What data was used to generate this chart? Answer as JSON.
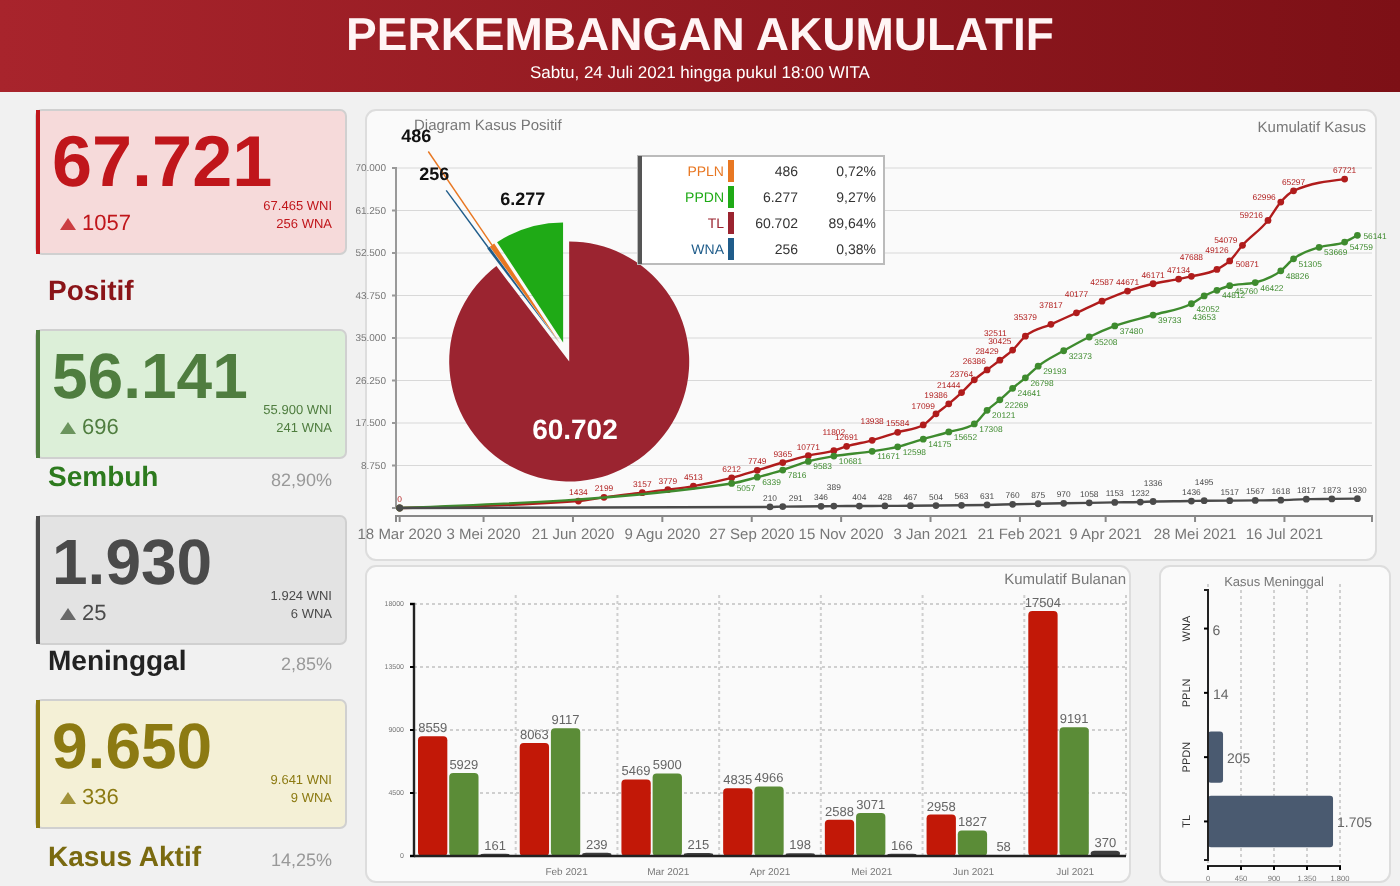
{
  "chart_data": [
    {
      "type": "other",
      "title": "PERKEMBANGAN AKUMULATIF",
      "subtitle": "Sabtu, 24 Juli 2021 hingga pukul 18:00 WITA",
      "annotations": [
        "67.721",
        "1057",
        "67.465 WNI",
        "256 WNA",
        "Positif",
        "56.141",
        "696",
        "55.900 WNI",
        "241 WNA",
        "Sembuh",
        "82,90%",
        "1.930",
        "25",
        "1.924 WNI",
        "6 WNA",
        "Meninggal",
        "2,85%",
        "9.650",
        "336",
        "9.641 WNI",
        "9 WNA",
        "Kasus Aktif",
        "14,25%"
      ]
    },
    {
      "type": "line",
      "title": "Kumulatif Kasus",
      "xlim": [
        "2020-03-16",
        "2021-09-02"
      ],
      "ylim": [
        0,
        70000
      ],
      "xticks": [
        {
          "value": "2020-03-18",
          "label": "18 Mar 2020"
        },
        {
          "value": "2020-05-03",
          "label": "3 Mei 2020"
        },
        {
          "value": "2020-06-21",
          "label": "21 Jun 2020"
        },
        {
          "value": "2020-08-09",
          "label": "9 Agu 2020"
        },
        {
          "value": "2020-09-27",
          "label": "27 Sep 2020"
        },
        {
          "value": "2020-11-15",
          "label": "15 Nov 2020"
        },
        {
          "value": "2021-01-03",
          "label": "3 Jan 2021"
        },
        {
          "value": "2021-02-21",
          "label": "21 Feb 2021"
        },
        {
          "value": "2021-04-09",
          "label": "9 Apr 2021"
        },
        {
          "value": "2021-05-28",
          "label": "28 Mei 2021"
        },
        {
          "value": "2021-07-16",
          "label": "16 Jul 2021"
        }
      ],
      "yticks": [
        {
          "value": 8750,
          "label": "8.750"
        },
        {
          "value": 17500,
          "label": "17.500"
        },
        {
          "value": 26250,
          "label": "26.250"
        },
        {
          "value": 35000,
          "label": "35.000"
        },
        {
          "value": 43750,
          "label": "43.750"
        },
        {
          "value": 52500,
          "label": "52.500"
        },
        {
          "value": 61250,
          "label": "61.250"
        },
        {
          "value": 70000,
          "label": "70.000"
        }
      ],
      "grid": "y",
      "marker": "circle",
      "series": [
        {
          "color": "#b01c1c",
          "value_labels": [
            "0",
            "1434",
            "2199",
            "3157",
            "3779",
            "4513",
            "6212",
            "7749",
            "9365",
            "10771",
            "11802",
            "12691",
            "13938",
            "15584",
            "17099",
            "19386",
            "21444",
            "23764",
            "26386",
            "28429",
            "30425",
            "32511",
            "35379",
            "37817",
            "40177",
            "42587",
            "44671",
            "46171",
            "47134",
            "47688",
            "49126",
            "50871",
            "54079",
            "59216",
            "62996",
            "65297",
            "67721"
          ],
          "x": [
            "2020-03-18",
            "2020-06-24",
            "2020-07-08",
            "2020-07-29",
            "2020-08-12",
            "2020-08-26",
            "2020-09-16",
            "2020-09-30",
            "2020-10-14",
            "2020-10-28",
            "2020-11-11",
            "2020-11-18",
            "2020-12-02",
            "2020-12-16",
            "2020-12-30",
            "2021-01-06",
            "2021-01-13",
            "2021-01-20",
            "2021-01-27",
            "2021-02-03",
            "2021-02-10",
            "2021-02-17",
            "2021-02-24",
            "2021-03-10",
            "2021-03-24",
            "2021-04-07",
            "2021-04-21",
            "2021-05-05",
            "2021-05-19",
            "2021-05-26",
            "2021-06-09",
            "2021-06-16",
            "2021-06-23",
            "2021-07-07",
            "2021-07-14",
            "2021-07-21",
            "2021-08-18"
          ],
          "values": [
            0,
            1434,
            2199,
            3157,
            3779,
            4513,
            6212,
            7749,
            9365,
            10771,
            11802,
            12691,
            13938,
            15584,
            17099,
            19386,
            21444,
            23764,
            26386,
            28429,
            30425,
            32511,
            35379,
            37817,
            40177,
            42587,
            44671,
            46171,
            47134,
            47688,
            49126,
            50871,
            54079,
            59216,
            62996,
            65297,
            67721
          ]
        },
        {
          "color": "#3e8b2e",
          "value_labels": [
            null,
            "5057",
            "6339",
            "7816",
            "9583",
            "10681",
            "11671",
            "12598",
            "14175",
            "15652",
            "17308",
            "20121",
            "22269",
            "24641",
            "26798",
            "29193",
            "32373",
            "35208",
            "37480",
            "39733",
            "42052",
            "43653",
            "44812",
            "45760",
            "46422",
            "48826",
            "51305",
            "53669",
            "54759",
            "56141"
          ],
          "x": [
            "2020-03-18",
            "2020-09-16",
            "2020-09-30",
            "2020-10-14",
            "2020-10-28",
            "2020-11-11",
            "2020-12-02",
            "2020-12-16",
            "2020-12-30",
            "2021-01-13",
            "2021-01-27",
            "2021-02-03",
            "2021-02-10",
            "2021-02-17",
            "2021-02-24",
            "2021-03-03",
            "2021-03-17",
            "2021-03-31",
            "2021-04-14",
            "2021-05-05",
            "2021-05-26",
            "2021-06-02",
            "2021-06-09",
            "2021-06-16",
            "2021-06-30",
            "2021-07-14",
            "2021-07-21",
            "2021-08-04",
            "2021-08-18",
            "2021-08-25"
          ],
          "values": [
            0,
            5057,
            6339,
            7816,
            9583,
            10681,
            11671,
            12598,
            14175,
            15652,
            17308,
            20121,
            22269,
            24641,
            26798,
            29193,
            32373,
            35208,
            37480,
            39733,
            42052,
            43653,
            44812,
            45760,
            46422,
            48826,
            51305,
            53669,
            54759,
            56141
          ]
        },
        {
          "color": "#4a4a4a",
          "value_labels": [
            null,
            "210",
            "291",
            "346",
            "389",
            "404",
            "428",
            "467",
            "504",
            "563",
            "631",
            "760",
            "875",
            "970",
            "1058",
            "1153",
            "1232",
            "1336",
            "1436",
            "1495",
            "1517",
            "1567",
            "1618",
            "1817",
            "1873",
            "1930"
          ],
          "x": [
            "2020-03-18",
            "2020-10-07",
            "2020-10-14",
            "2020-11-04",
            "2020-11-11",
            "2020-11-25",
            "2020-12-09",
            "2020-12-23",
            "2021-01-06",
            "2021-01-20",
            "2021-02-03",
            "2021-02-17",
            "2021-03-03",
            "2021-03-17",
            "2021-03-31",
            "2021-04-14",
            "2021-04-28",
            "2021-05-05",
            "2021-05-26",
            "2021-06-02",
            "2021-06-16",
            "2021-06-30",
            "2021-07-14",
            "2021-07-28",
            "2021-08-11",
            "2021-08-25"
          ],
          "values": [
            0,
            210,
            291,
            346,
            389,
            404,
            428,
            467,
            504,
            563,
            631,
            760,
            875,
            970,
            1058,
            1153,
            1232,
            1336,
            1436,
            1495,
            1517,
            1567,
            1618,
            1817,
            1873,
            1930
          ]
        }
      ]
    },
    {
      "type": "pie",
      "title": "Diagram Kasus Positif",
      "categories": [
        "PPLN",
        "PPDN",
        "TL",
        "WNA"
      ],
      "values": [
        486,
        6277,
        60702,
        256
      ],
      "colors": [
        "#e87722",
        "#1faa16",
        "#9b2430",
        "#1f5c8a"
      ],
      "value_labels": [
        "486",
        "6.277",
        "60.702",
        "256"
      ],
      "legend": "top right",
      "annotations": [
        "0,72%",
        "9,27%",
        "89,64%",
        "0,38%"
      ]
    },
    {
      "type": "bar",
      "title": "Kumulatif Bulanan",
      "categories": [
        null,
        "Feb 2021",
        "Mar 2021",
        "Apr 2021",
        "Mei 2021",
        "Jun 2021",
        "Jul 2021"
      ],
      "ylim": [
        0,
        18000
      ],
      "yticks": [
        0,
        4500,
        9000,
        13500,
        18000
      ],
      "grid": true,
      "data_labels": true,
      "series": [
        {
          "color": "#c21807",
          "values": [
            8559,
            8063,
            5469,
            4835,
            2588,
            2958,
            17504
          ]
        },
        {
          "color": "#5b8c37",
          "values": [
            5929,
            9117,
            5900,
            4966,
            3071,
            1827,
            9191
          ]
        },
        {
          "color": "#3d3d3d",
          "values": [
            161,
            239,
            215,
            198,
            166,
            58,
            370
          ]
        }
      ]
    },
    {
      "type": "bar",
      "orientation": "horizontal",
      "title": "Kasus Meninggal",
      "categories": [
        "WNA",
        "PPLN",
        "PPDN",
        "TL"
      ],
      "values": [
        6,
        14,
        205,
        1705
      ],
      "color": "#4a5a70",
      "value_labels": [
        "6",
        "14",
        "205",
        "1.705"
      ],
      "xlim": [
        0,
        1800
      ],
      "xticks": [
        0,
        450,
        900,
        {
          "value": 1350,
          "label": "1.350"
        },
        {
          "value": 1800,
          "label": "1.800"
        }
      ],
      "grid": "x"
    }
  ]
}
